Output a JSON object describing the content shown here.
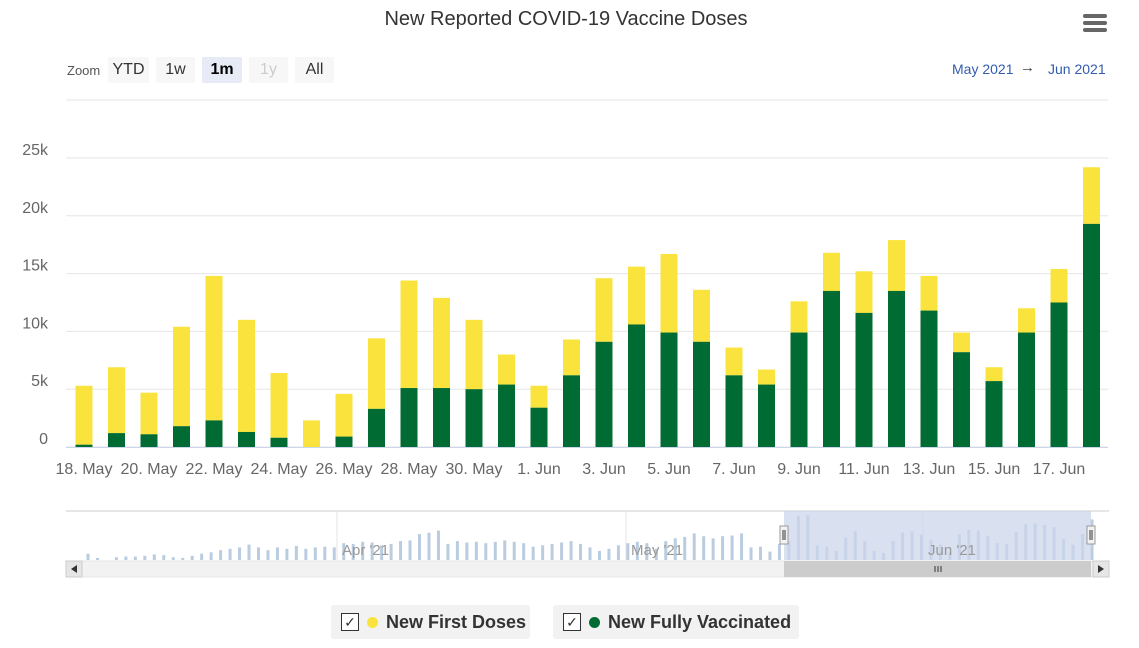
{
  "title": "New Reported COVID-19 Vaccine Doses",
  "menu_icon": "hamburger-menu-icon",
  "zoom": {
    "label": "Zoom",
    "buttons": [
      {
        "label": "YTD",
        "state": "normal"
      },
      {
        "label": "1w",
        "state": "normal"
      },
      {
        "label": "1m",
        "state": "active"
      },
      {
        "label": "1y",
        "state": "disabled"
      },
      {
        "label": "All",
        "state": "normal"
      }
    ]
  },
  "range": {
    "from": "May 2021",
    "arrow": "→",
    "to": "Jun 2021"
  },
  "colors": {
    "first": "#f9e33c",
    "full": "#006b32",
    "grid": "#e6e6e6",
    "navigator_bar": "#b9cce0",
    "navigator_mask": "#ccd6eb"
  },
  "legend": [
    {
      "label": "New First Doses",
      "color": "#f9e33c",
      "checked": true
    },
    {
      "label": "New Fully Vaccinated",
      "color": "#006b32",
      "checked": true
    }
  ],
  "navigator": {
    "labels": [
      "Apr '21",
      "May '21",
      "Jun '21"
    ],
    "values": [
      900,
      300,
      0,
      400,
      500,
      500,
      600,
      800,
      700,
      400,
      300,
      600,
      900,
      1100,
      1400,
      1600,
      1800,
      2200,
      1800,
      1400,
      1800,
      1600,
      2000,
      1600,
      1800,
      1900,
      1800,
      2400,
      2300,
      2600,
      2500,
      2100,
      2300,
      2700,
      2800,
      3700,
      3900,
      4200,
      2300,
      2700,
      2500,
      2600,
      2400,
      2600,
      2800,
      2600,
      2400,
      1900,
      2100,
      2300,
      2500,
      2700,
      2300,
      1800,
      1300,
      1600,
      2100,
      2400,
      2600,
      2400,
      1600,
      2700,
      3100,
      3300,
      3800,
      3400,
      3100,
      3400,
      3500,
      3800,
      1800,
      1900,
      1200,
      2300,
      2700,
      6300,
      6400,
      2100,
      1900,
      1300,
      3200,
      4100,
      2700,
      1300,
      1000,
      2700,
      3900,
      4100,
      3600,
      2800,
      2200,
      1100,
      3700,
      4300,
      4200,
      3400,
      2400,
      2300,
      4000,
      5100,
      5200,
      5000,
      4700,
      3000,
      2200,
      3700,
      5800
    ]
  },
  "chart_data": {
    "type": "bar",
    "stacked": true,
    "title": "New Reported COVID-19 Vaccine Doses",
    "xlabel": "",
    "ylabel": "",
    "ylim": [
      0,
      25000
    ],
    "yticks": [
      "0",
      "5k",
      "10k",
      "15k",
      "20k",
      "25k"
    ],
    "x_tick_labels": [
      "18. May",
      "20. May",
      "22. May",
      "24. May",
      "26. May",
      "28. May",
      "30. May",
      "1. Jun",
      "3. Jun",
      "5. Jun",
      "7. Jun",
      "9. Jun",
      "11. Jun",
      "13. Jun",
      "15. Jun",
      "17. Jun"
    ],
    "categories": [
      "18 May",
      "19 May",
      "20 May",
      "21 May",
      "22 May",
      "23 May",
      "24 May",
      "25 May",
      "26 May",
      "27 May",
      "28 May",
      "29 May",
      "30 May",
      "31 May",
      "1 Jun",
      "2 Jun",
      "3 Jun",
      "4 Jun",
      "5 Jun",
      "6 Jun",
      "7 Jun",
      "8 Jun",
      "9 Jun",
      "10 Jun",
      "11 Jun",
      "12 Jun",
      "13 Jun",
      "14 Jun",
      "15 Jun",
      "16 Jun",
      "17 Jun",
      "18 Jun"
    ],
    "grid": true,
    "legend_position": "bottom",
    "series": [
      {
        "name": "New Fully Vaccinated",
        "values": [
          200,
          1200,
          1100,
          1800,
          2300,
          1300,
          800,
          0,
          900,
          3300,
          5100,
          5100,
          5000,
          5400,
          3400,
          6200,
          9100,
          10600,
          9900,
          9100,
          6200,
          5400,
          9900,
          13500,
          11600,
          13500,
          11800,
          8200,
          5700,
          9900,
          12500,
          19300
        ]
      },
      {
        "name": "New First Doses",
        "values": [
          5100,
          5700,
          3600,
          8600,
          12500,
          9700,
          5600,
          2300,
          3700,
          6100,
          9300,
          7800,
          6000,
          2600,
          1900,
          3100,
          5500,
          5000,
          6800,
          4500,
          2400,
          1300,
          2700,
          3300,
          3600,
          4400,
          3000,
          1700,
          1200,
          2100,
          2900,
          4900
        ]
      }
    ]
  }
}
